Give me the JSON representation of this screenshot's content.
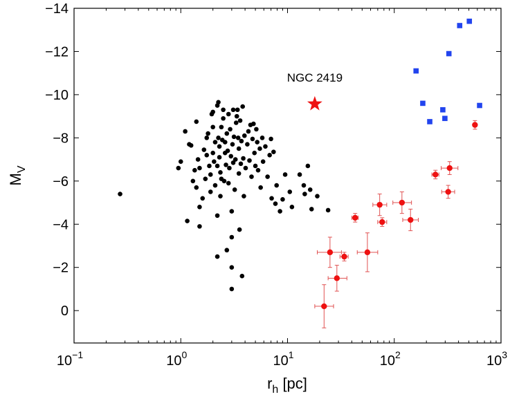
{
  "chart_data": {
    "type": "scatter",
    "title": "",
    "xlabel": {
      "main": "r",
      "sub": "h",
      "unit": " [pc]"
    },
    "ylabel": {
      "main": "M",
      "sub": "V"
    },
    "x_scale": "log",
    "xlim": [
      0.1,
      1000
    ],
    "ylim": [
      1.5,
      -14
    ],
    "y_inverted": true,
    "x_ticks": [
      {
        "value": 0.1,
        "base": "10",
        "exp": "−1"
      },
      {
        "value": 1,
        "base": "10",
        "exp": "0"
      },
      {
        "value": 10,
        "base": "10",
        "exp": "1"
      },
      {
        "value": 100,
        "base": "10",
        "exp": "2"
      },
      {
        "value": 1000,
        "base": "10",
        "exp": "3"
      }
    ],
    "y_ticks": [
      {
        "value": -14,
        "label": "−14"
      },
      {
        "value": -12,
        "label": "−12"
      },
      {
        "value": -10,
        "label": "−10"
      },
      {
        "value": -8,
        "label": "−8"
      },
      {
        "value": -6,
        "label": "−6"
      },
      {
        "value": -4,
        "label": "−4"
      },
      {
        "value": -2,
        "label": "−2"
      },
      {
        "value": 0,
        "label": "0"
      }
    ],
    "grid": false,
    "legend": "none",
    "colors": {
      "black": "#000000",
      "red": "#ee1111",
      "blue": "#2244ee"
    },
    "series": [
      {
        "marker": "circle",
        "color": "#000000",
        "points": [
          [
            0.27,
            -5.4
          ],
          [
            0.95,
            -6.6
          ],
          [
            1.0,
            -6.9
          ],
          [
            1.1,
            -8.3
          ],
          [
            1.15,
            -4.15
          ],
          [
            1.2,
            -7.7
          ],
          [
            1.25,
            -7.65
          ],
          [
            1.3,
            -6.0
          ],
          [
            1.35,
            -6.5
          ],
          [
            1.4,
            -5.7
          ],
          [
            1.4,
            -8.75
          ],
          [
            1.45,
            -7.0
          ],
          [
            1.5,
            -6.6
          ],
          [
            1.5,
            -3.9
          ],
          [
            1.5,
            -4.8
          ],
          [
            1.6,
            -5.2
          ],
          [
            1.65,
            -7.45
          ],
          [
            1.7,
            -6.1
          ],
          [
            1.75,
            -8.0
          ],
          [
            1.75,
            -7.2
          ],
          [
            1.8,
            -8.2
          ],
          [
            1.85,
            -6.7
          ],
          [
            1.9,
            -5.5
          ],
          [
            1.9,
            -6.3
          ],
          [
            1.95,
            -9.1
          ],
          [
            2.0,
            -9.2
          ],
          [
            2.0,
            -8.5
          ],
          [
            2.0,
            -7.3
          ],
          [
            2.05,
            -6.9
          ],
          [
            2.1,
            -5.8
          ],
          [
            2.1,
            -7.8
          ],
          [
            2.2,
            -9.5
          ],
          [
            2.2,
            -6.7
          ],
          [
            2.2,
            -4.4
          ],
          [
            2.2,
            -2.5
          ],
          [
            2.25,
            -8.0
          ],
          [
            2.25,
            -9.65
          ],
          [
            2.3,
            -7.1
          ],
          [
            2.3,
            -7.6
          ],
          [
            2.35,
            -6.4
          ],
          [
            2.35,
            -5.3
          ],
          [
            2.4,
            -8.5
          ],
          [
            2.4,
            -6.1
          ],
          [
            2.45,
            -7.9
          ],
          [
            2.5,
            -9.3
          ],
          [
            2.5,
            -8.9
          ],
          [
            2.55,
            -6.0
          ],
          [
            2.6,
            -7.3
          ],
          [
            2.6,
            -7.8
          ],
          [
            2.65,
            -6.75
          ],
          [
            2.7,
            -2.8
          ],
          [
            2.7,
            -8.2
          ],
          [
            2.75,
            -7.4
          ],
          [
            2.8,
            -9.1
          ],
          [
            2.8,
            -5.9
          ],
          [
            2.85,
            -6.6
          ],
          [
            2.9,
            -8.4
          ],
          [
            2.95,
            -7.15
          ],
          [
            3.0,
            -4.6
          ],
          [
            3.0,
            -3.4
          ],
          [
            3.0,
            -2.0
          ],
          [
            3.0,
            -1.0
          ],
          [
            3.05,
            -7.7
          ],
          [
            3.1,
            -9.3
          ],
          [
            3.1,
            -6.85
          ],
          [
            3.15,
            -8.05
          ],
          [
            3.2,
            -5.6
          ],
          [
            3.25,
            -7.0
          ],
          [
            3.3,
            -8.7
          ],
          [
            3.35,
            -9.0
          ],
          [
            3.4,
            -9.3
          ],
          [
            3.45,
            -8.0
          ],
          [
            3.5,
            -7.5
          ],
          [
            3.5,
            -6.35
          ],
          [
            3.55,
            -3.75
          ],
          [
            3.6,
            -8.8
          ],
          [
            3.65,
            -6.8
          ],
          [
            3.7,
            -7.85
          ],
          [
            3.75,
            -1.6
          ],
          [
            3.8,
            -9.45
          ],
          [
            3.85,
            -7.05
          ],
          [
            3.9,
            -5.3
          ],
          [
            3.95,
            -8.1
          ],
          [
            4.05,
            -6.6
          ],
          [
            4.2,
            -7.7
          ],
          [
            4.3,
            -8.3
          ],
          [
            4.4,
            -6.95
          ],
          [
            4.5,
            -8.6
          ],
          [
            4.6,
            -6.2
          ],
          [
            4.7,
            -7.95
          ],
          [
            4.8,
            -8.65
          ],
          [
            4.9,
            -7.3
          ],
          [
            5.0,
            -6.7
          ],
          [
            5.1,
            -8.4
          ],
          [
            5.2,
            -7.8
          ],
          [
            5.3,
            -6.5
          ],
          [
            5.5,
            -7.5
          ],
          [
            5.6,
            -5.7
          ],
          [
            5.8,
            -8.0
          ],
          [
            5.9,
            -6.9
          ],
          [
            6.2,
            -7.6
          ],
          [
            6.5,
            -6.2
          ],
          [
            6.8,
            -7.2
          ],
          [
            7.0,
            -7.95
          ],
          [
            7.1,
            -5.2
          ],
          [
            7.4,
            -7.35
          ],
          [
            7.7,
            -4.95
          ],
          [
            7.9,
            -5.8
          ],
          [
            8.5,
            -4.6
          ],
          [
            9.0,
            -5.15
          ],
          [
            9.5,
            -6.3
          ],
          [
            10.5,
            -5.5
          ],
          [
            11.0,
            -4.8
          ],
          [
            13.0,
            -6.3
          ],
          [
            14.2,
            -5.8
          ],
          [
            14.5,
            -5.4
          ],
          [
            15.5,
            -6.7
          ],
          [
            16.3,
            -5.6
          ],
          [
            16.8,
            -4.7
          ],
          [
            19.0,
            -5.3
          ],
          [
            24.0,
            -4.65
          ]
        ]
      },
      {
        "marker": "square",
        "color": "#2244ee",
        "points": [
          [
            160,
            -11.1
          ],
          [
            185,
            -9.6
          ],
          [
            215,
            -8.75
          ],
          [
            285,
            -9.3
          ],
          [
            298,
            -8.9
          ],
          [
            325,
            -11.9
          ],
          [
            410,
            -13.2
          ],
          [
            505,
            -13.4
          ],
          [
            630,
            -9.5
          ]
        ]
      },
      {
        "marker": "circle-errorbar",
        "color": "#ee1111",
        "points": [
          {
            "x": 22,
            "y": -0.2,
            "xlo": 18,
            "xhi": 27,
            "yerr": 1.0
          },
          {
            "x": 25,
            "y": -2.7,
            "xlo": 19,
            "xhi": 32,
            "yerr": 0.7
          },
          {
            "x": 29,
            "y": -1.5,
            "xlo": 24,
            "xhi": 36,
            "yerr": 0.6
          },
          {
            "x": 34,
            "y": -2.5,
            "xlo": 31,
            "xhi": 37,
            "yerr": 0.2
          },
          {
            "x": 43,
            "y": -4.3,
            "xlo": 40,
            "xhi": 46,
            "yerr": 0.2
          },
          {
            "x": 56,
            "y": -2.7,
            "xlo": 45,
            "xhi": 70,
            "yerr": 0.9
          },
          {
            "x": 73,
            "y": -4.9,
            "xlo": 63,
            "xhi": 85,
            "yerr": 0.5
          },
          {
            "x": 77,
            "y": -4.1,
            "xlo": 70,
            "xhi": 85,
            "yerr": 0.2
          },
          {
            "x": 118,
            "y": -5.0,
            "xlo": 97,
            "xhi": 145,
            "yerr": 0.5
          },
          {
            "x": 142,
            "y": -4.2,
            "xlo": 120,
            "xhi": 168,
            "yerr": 0.5
          },
          {
            "x": 243,
            "y": -6.3,
            "xlo": 225,
            "xhi": 262,
            "yerr": 0.2
          },
          {
            "x": 320,
            "y": -5.5,
            "xlo": 278,
            "xhi": 368,
            "yerr": 0.3
          },
          {
            "x": 330,
            "y": -6.6,
            "xlo": 275,
            "xhi": 395,
            "yerr": 0.3
          },
          {
            "x": 570,
            "y": -8.6,
            "xlo": 555,
            "xhi": 585,
            "yerr": 0.2
          }
        ]
      },
      {
        "marker": "star",
        "color": "#ee1111",
        "points": [
          {
            "x": 18,
            "y": -9.57
          }
        ]
      }
    ],
    "annotations": [
      {
        "text": "NGC 2419",
        "x": 18,
        "y": -10.6
      }
    ]
  }
}
